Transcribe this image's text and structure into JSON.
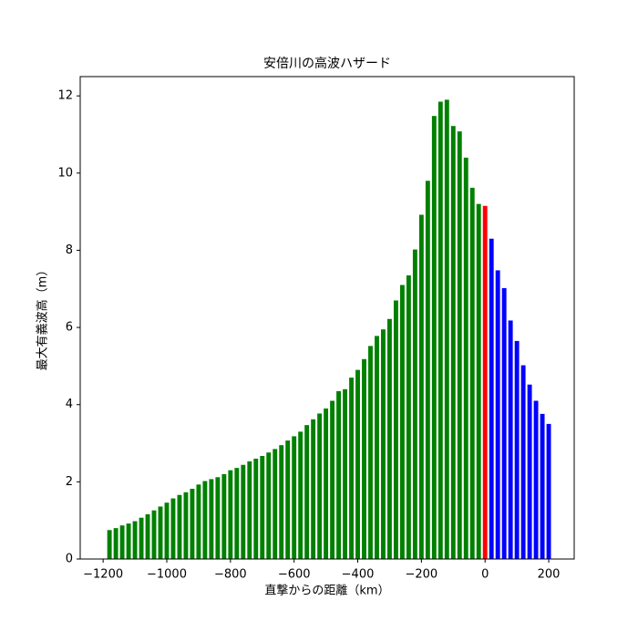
{
  "chart_data": {
    "type": "bar",
    "title": "安倍川の高波ハザード",
    "x_label": "直撃からの距離（km）",
    "y_label": "最大有義波高（m）",
    "series": [
      {
        "color": "#008000",
        "x": [
          -1180,
          -1160,
          -1140,
          -1120,
          -1100,
          -1080,
          -1060,
          -1040,
          -1020,
          -1000,
          -980,
          -960,
          -940,
          -920,
          -900,
          -880,
          -860,
          -840,
          -820,
          -800,
          -780,
          -760,
          -740,
          -720,
          -700,
          -680,
          -660,
          -640,
          -620,
          -600,
          -580,
          -560,
          -540,
          -520,
          -500,
          -480,
          -460,
          -440,
          -420,
          -400,
          -380,
          -360,
          -340,
          -320,
          -300,
          -280,
          -260,
          -240,
          -220,
          -200,
          -180,
          -160,
          -140,
          -120,
          -100,
          -80,
          -60,
          -40,
          -20
        ],
        "values": [
          0.75,
          0.8,
          0.87,
          0.92,
          0.98,
          1.07,
          1.16,
          1.26,
          1.36,
          1.46,
          1.57,
          1.66,
          1.73,
          1.82,
          1.93,
          2.02,
          2.07,
          2.12,
          2.2,
          2.3,
          2.36,
          2.44,
          2.53,
          2.6,
          2.67,
          2.76,
          2.85,
          2.95,
          3.07,
          3.18,
          3.3,
          3.47,
          3.62,
          3.77,
          3.9,
          4.1,
          4.35,
          4.4,
          4.7,
          4.9,
          5.18,
          5.52,
          5.78,
          5.95,
          6.22,
          6.7,
          7.1,
          7.35,
          8.02,
          8.92,
          9.8,
          11.48,
          11.85,
          11.9,
          11.22,
          11.08,
          10.4,
          9.62,
          9.2
        ]
      },
      {
        "color": "#ff0000",
        "x": [
          0
        ],
        "values": [
          9.15
        ]
      },
      {
        "color": "#0000ff",
        "x": [
          20,
          40,
          60,
          80,
          100,
          120,
          140,
          160,
          180,
          200
        ],
        "values": [
          8.3,
          7.48,
          7.02,
          6.18,
          5.65,
          5.02,
          4.52,
          4.1,
          3.76,
          3.5
        ]
      }
    ],
    "xlim": [
      -1272,
      280
    ],
    "xticks": [
      {
        "value": -1200,
        "label": "−1200"
      },
      {
        "value": -1000,
        "label": "−1000"
      },
      {
        "value": -800,
        "label": "−800"
      },
      {
        "value": -600,
        "label": "−600"
      },
      {
        "value": -400,
        "label": "−400"
      },
      {
        "value": -200,
        "label": "−200"
      },
      0,
      200
    ],
    "ylim": [
      0,
      12.5
    ],
    "yticks": [
      0,
      2,
      4,
      6,
      8,
      10,
      12
    ]
  }
}
